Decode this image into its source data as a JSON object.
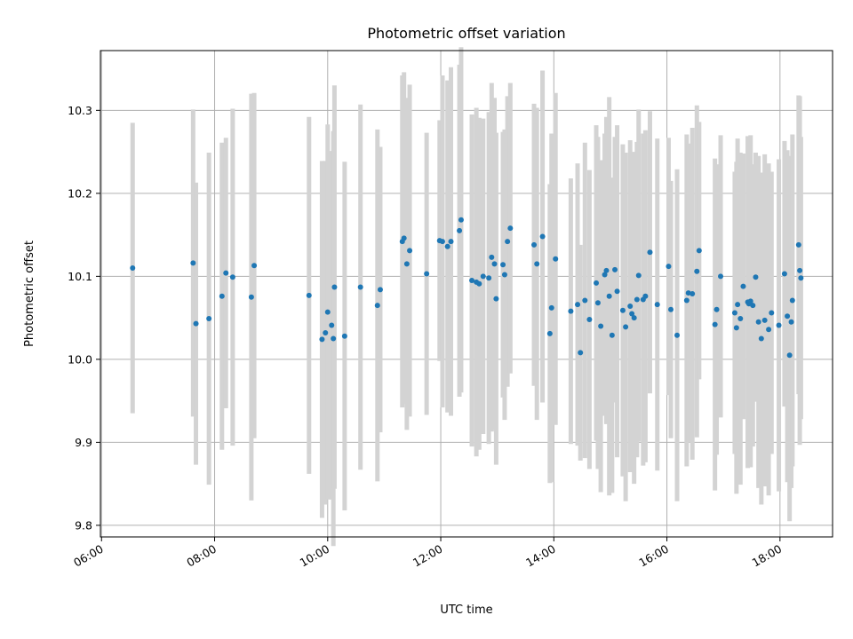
{
  "chart_data": {
    "type": "scatter",
    "title": "Photometric offset variation",
    "xlabel": "UTC time",
    "ylabel": "Photometric offset",
    "x_tick_labels": [
      "06:00",
      "08:00",
      "10:00",
      "12:00",
      "14:00",
      "16:00",
      "18:00"
    ],
    "y_tick_labels": [
      "9.8",
      "9.9",
      "10.0",
      "10.1",
      "10.2",
      "10.3"
    ],
    "y_ticks": [
      9.8,
      9.9,
      10.0,
      10.1,
      10.2,
      10.3
    ],
    "x_ticks_hours": [
      6,
      8,
      10,
      12,
      14,
      16,
      18
    ],
    "xlim_hours": [
      5.98,
      18.93
    ],
    "ylim": [
      9.786,
      10.372
    ],
    "grid": true,
    "marker_color": "#1f77b4",
    "errorbar_color": "#d3d3d3",
    "series": [
      {
        "x_hours": [
          6.55,
          7.62,
          7.67,
          7.9,
          8.13,
          8.2,
          8.32,
          8.65,
          8.7,
          9.67,
          9.9,
          9.96,
          10.0,
          10.07,
          10.1,
          10.12,
          10.3,
          10.58,
          10.88,
          10.93,
          11.32,
          11.35,
          11.4,
          11.45,
          11.75,
          11.98,
          12.03,
          12.12,
          12.18,
          12.33,
          12.36,
          12.55,
          12.63,
          12.68,
          12.75,
          12.85,
          12.9,
          12.95,
          12.98,
          13.1,
          13.13,
          13.18,
          13.23,
          13.65,
          13.7,
          13.8,
          13.93,
          13.96,
          14.03,
          14.3,
          14.42,
          14.47,
          14.55,
          14.63,
          14.75,
          14.78,
          14.83,
          14.9,
          14.93,
          14.98,
          15.03,
          15.08,
          15.12,
          15.22,
          15.27,
          15.35,
          15.38,
          15.42,
          15.47,
          15.5,
          15.58,
          15.62,
          15.7,
          15.83,
          16.03,
          16.07,
          16.18,
          16.35,
          16.38,
          16.45,
          16.53,
          16.57,
          16.85,
          16.88,
          16.95,
          17.2,
          17.23,
          17.25,
          17.3,
          17.35,
          17.43,
          17.45,
          17.48,
          17.52,
          17.57,
          17.62,
          17.67,
          17.73,
          17.8,
          17.85,
          17.98,
          18.08,
          18.13,
          18.17,
          18.2,
          18.22,
          18.33,
          18.35,
          18.37
        ],
        "y": [
          10.11,
          10.116,
          10.043,
          10.049,
          10.076,
          10.104,
          10.099,
          10.075,
          10.113,
          10.077,
          10.024,
          10.032,
          10.057,
          10.041,
          10.025,
          10.087,
          10.028,
          10.087,
          10.065,
          10.084,
          10.142,
          10.146,
          10.115,
          10.131,
          10.103,
          10.143,
          10.142,
          10.136,
          10.142,
          10.155,
          10.168,
          10.095,
          10.093,
          10.091,
          10.1,
          10.098,
          10.123,
          10.115,
          10.073,
          10.114,
          10.102,
          10.142,
          10.158,
          10.138,
          10.115,
          10.148,
          10.031,
          10.062,
          10.121,
          10.058,
          10.066,
          10.008,
          10.071,
          10.048,
          10.092,
          10.068,
          10.04,
          10.102,
          10.107,
          10.076,
          10.029,
          10.108,
          10.082,
          10.059,
          10.039,
          10.064,
          10.055,
          10.05,
          10.072,
          10.101,
          10.072,
          10.076,
          10.129,
          10.066,
          10.112,
          10.06,
          10.029,
          10.071,
          10.08,
          10.079,
          10.106,
          10.131,
          10.042,
          10.06,
          10.1,
          10.056,
          10.038,
          10.066,
          10.049,
          10.088,
          10.069,
          10.067,
          10.07,
          10.065,
          10.099,
          10.045,
          10.025,
          10.047,
          10.036,
          10.056,
          10.041,
          10.103,
          10.052,
          10.005,
          10.045,
          10.071,
          10.138,
          10.107,
          10.098
        ],
        "err": [
          0.175,
          0.185,
          0.17,
          0.2,
          0.185,
          0.163,
          0.203,
          0.245,
          0.208,
          0.215,
          0.215,
          0.207,
          0.226,
          0.21,
          0.25,
          0.243,
          0.21,
          0.22,
          0.212,
          0.172,
          0.2,
          0.2,
          0.2,
          0.2,
          0.17,
          0.145,
          0.2,
          0.2,
          0.21,
          0.2,
          0.208,
          0.2,
          0.21,
          0.2,
          0.19,
          0.2,
          0.21,
          0.2,
          0.2,
          0.16,
          0.175,
          0.175,
          0.175,
          0.17,
          0.188,
          0.2,
          0.18,
          0.21,
          0.2,
          0.16,
          0.17,
          0.13,
          0.19,
          0.18,
          0.19,
          0.2,
          0.2,
          0.17,
          0.185,
          0.24,
          0.19,
          0.16,
          0.2,
          0.2,
          0.21,
          0.2,
          0.18,
          0.2,
          0.19,
          0.2,
          0.2,
          0.2,
          0.17,
          0.2,
          0.155,
          0.155,
          0.2,
          0.2,
          0.18,
          0.2,
          0.2,
          0.155,
          0.2,
          0.175,
          0.17,
          0.17,
          0.2,
          0.2,
          0.2,
          0.16,
          0.2,
          0.17,
          0.2,
          0.17,
          0.15,
          0.2,
          0.2,
          0.2,
          0.2,
          0.17,
          0.2,
          0.16,
          0.2,
          0.2,
          0.2,
          0.2,
          0.18,
          0.21,
          0.17
        ]
      }
    ]
  }
}
